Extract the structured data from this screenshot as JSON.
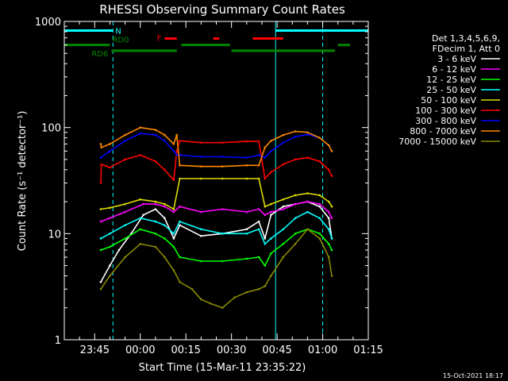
{
  "chart_data": {
    "type": "line",
    "title": "RHESSI Observing Summary Count Rates",
    "xlabel": "Start Time (15-Mar-11 23:35:22)",
    "ylabel": "Count Rate (s⁻¹ detector⁻¹)",
    "yscale": "log",
    "ylim": [
      1,
      1000
    ],
    "xlim_minutes_after_2335": [
      0,
      100
    ],
    "x_tick_labels": [
      "23:45",
      "00:00",
      "00:15",
      "00:30",
      "00:45",
      "01:00",
      "01:15"
    ],
    "y_tick_labels": [
      "1",
      "10",
      "100",
      "1000"
    ],
    "legend_title": [
      "Det 1,3,4,5,6,9,",
      "FDecim 1, Att 0"
    ],
    "legend_placement": "right",
    "footer": "15-Oct-2021 18:17",
    "x_ticks_minutes": [
      10,
      25,
      40,
      55,
      70,
      85,
      100
    ],
    "series": [
      {
        "name": "3 - 6 keV",
        "color": "#ffffff",
        "x": [
          12,
          15,
          18,
          22,
          26,
          30,
          33,
          36,
          38,
          45,
          52,
          60,
          64,
          66,
          68,
          72,
          76,
          80,
          84,
          87,
          88
        ],
        "y": [
          3.5,
          5,
          7,
          10,
          15,
          17,
          14,
          9,
          12,
          9.5,
          10,
          11,
          13,
          9,
          15,
          18,
          19,
          20,
          18,
          14,
          9
        ]
      },
      {
        "name": "6 - 12 keV",
        "color": "#ff00ff",
        "x": [
          12,
          15,
          20,
          26,
          30,
          33,
          36,
          38,
          45,
          52,
          60,
          64,
          66,
          68,
          72,
          76,
          80,
          84,
          87,
          88
        ],
        "y": [
          13,
          14,
          16,
          19,
          19,
          18,
          16,
          18,
          16,
          17,
          16,
          17,
          15,
          16,
          17,
          19,
          20,
          19,
          16,
          14
        ]
      },
      {
        "name": "12 - 25 keV",
        "color": "#00ff00",
        "x": [
          12,
          15,
          20,
          25,
          30,
          33,
          36,
          38,
          45,
          52,
          60,
          64,
          66,
          68,
          72,
          76,
          80,
          84,
          87,
          88
        ],
        "y": [
          7,
          7.5,
          9,
          11,
          10,
          9,
          7.5,
          6,
          5.5,
          5.5,
          5.8,
          6,
          5,
          6.5,
          8,
          10,
          11,
          10,
          8,
          7
        ]
      },
      {
        "name": "25 - 50 keV",
        "color": "#00ffff",
        "x": [
          12,
          15,
          20,
          25,
          30,
          33,
          36,
          38,
          45,
          52,
          60,
          64,
          66,
          68,
          72,
          76,
          80,
          84,
          87,
          88
        ],
        "y": [
          9,
          10,
          12,
          14,
          13,
          12,
          10,
          13,
          11,
          10,
          10,
          11,
          8,
          9,
          11,
          14,
          16,
          14,
          11,
          9
        ]
      },
      {
        "name": "50 - 100 keV",
        "color": "#dddd00",
        "x": [
          12,
          15,
          20,
          25,
          30,
          33,
          36,
          38,
          45,
          52,
          60,
          64,
          66,
          68,
          72,
          76,
          80,
          84,
          87,
          88
        ],
        "y": [
          17,
          17.5,
          19,
          21,
          20,
          19,
          17,
          33,
          33,
          33,
          33,
          33,
          18,
          19,
          21,
          23,
          24,
          23,
          20,
          18
        ]
      },
      {
        "name": "100 - 300 keV",
        "color": "#ff0000",
        "x": [
          12,
          12.2,
          15,
          20,
          25,
          30,
          33,
          36,
          37,
          38,
          45,
          52,
          60,
          64,
          66,
          68,
          72,
          76,
          80,
          84,
          87,
          88
        ],
        "y": [
          30,
          45,
          42,
          50,
          55,
          48,
          40,
          32,
          60,
          75,
          72,
          72,
          74,
          74,
          33,
          38,
          45,
          50,
          52,
          48,
          40,
          35
        ]
      },
      {
        "name": "300 - 800 keV",
        "color": "#0000ff",
        "x": [
          12,
          15,
          20,
          25,
          30,
          33,
          36,
          37,
          38,
          45,
          52,
          60,
          64,
          66,
          68,
          72,
          76,
          80,
          84,
          87,
          88
        ],
        "y": [
          52,
          60,
          75,
          88,
          85,
          75,
          60,
          55,
          55,
          53,
          53,
          52,
          55,
          52,
          60,
          72,
          82,
          86,
          80,
          68,
          60
        ]
      },
      {
        "name": "800 - 7000 keV",
        "color": "#ff8800",
        "x": [
          12,
          12.2,
          15,
          20,
          25,
          30,
          33,
          36,
          37,
          38,
          45,
          52,
          60,
          64,
          66,
          68,
          72,
          76,
          80,
          84,
          87,
          88
        ],
        "y": [
          70,
          65,
          70,
          85,
          100,
          95,
          85,
          70,
          85,
          44,
          43,
          43,
          44,
          44,
          65,
          75,
          85,
          92,
          90,
          80,
          68,
          60
        ]
      },
      {
        "name": "7000 - 15000 keV",
        "color": "#888800",
        "x": [
          12,
          15,
          20,
          25,
          30,
          33,
          36,
          38,
          42,
          45,
          48,
          52,
          56,
          60,
          64,
          66,
          68,
          72,
          76,
          80,
          84,
          87,
          88
        ],
        "y": [
          3,
          4,
          6,
          8,
          7.5,
          6,
          4.5,
          3.5,
          3,
          2.4,
          2.2,
          2,
          2.5,
          2.8,
          3,
          3.2,
          4,
          6,
          8,
          11,
          9,
          6,
          4
        ]
      }
    ],
    "vertical_markers": [
      {
        "color": "#00ffff",
        "style": "solid",
        "x_minutes": [
          0,
          69.5
        ]
      },
      {
        "color": "#00ffff",
        "style": "dashed",
        "x_minutes": [
          16,
          85
        ]
      }
    ],
    "state_bars": [
      {
        "label": "N",
        "color": "#00ffff",
        "level": 820,
        "segments": [
          [
            0,
            16
          ],
          [
            69.5,
            100
          ]
        ]
      },
      {
        "label": "F",
        "color": "#ff0000",
        "level": 690,
        "segments": [
          [
            33,
            37
          ],
          [
            49,
            51
          ],
          [
            62,
            72
          ]
        ]
      },
      {
        "label": "RD0",
        "color": "#008800",
        "level": 600,
        "segments": [
          [
            0,
            15
          ],
          [
            38.5,
            54.5
          ],
          [
            90,
            94
          ]
        ]
      },
      {
        "label": "RD6",
        "color": "#008800",
        "level": 530,
        "segments": [
          [
            15.5,
            37
          ],
          [
            55,
            89
          ]
        ]
      }
    ]
  }
}
